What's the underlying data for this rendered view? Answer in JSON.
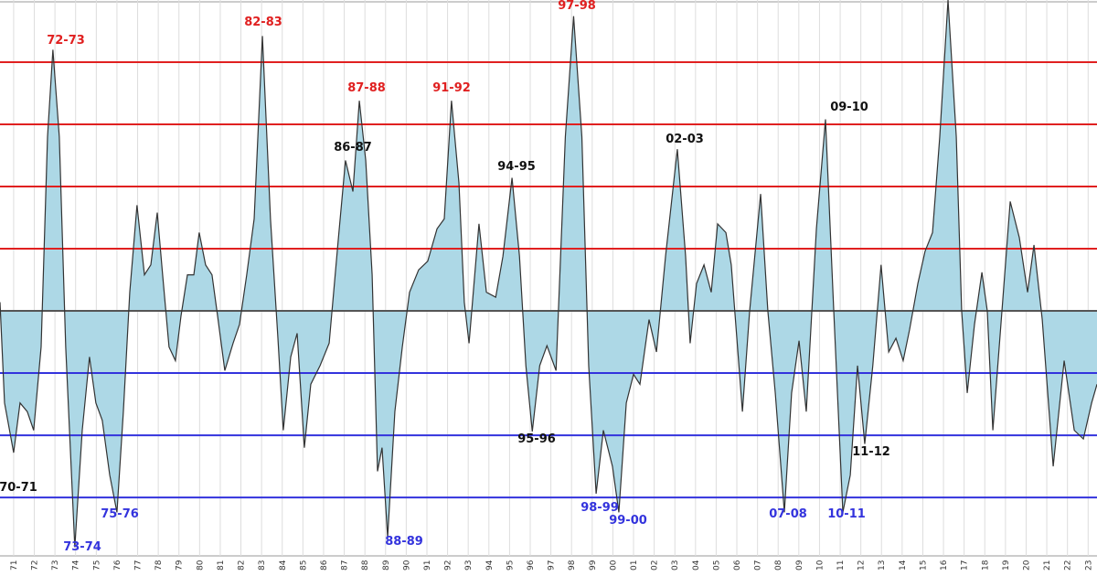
{
  "chart_data": {
    "type": "area",
    "x": [
      1970.34,
      1970.56,
      1971.0,
      1971.31,
      1971.66,
      1971.97,
      1972.33,
      1972.64,
      1972.9,
      1973.21,
      1973.52,
      1973.96,
      1974.32,
      1974.67,
      1974.98,
      1975.29,
      1975.65,
      1976.0,
      1976.31,
      1976.62,
      1976.97,
      1977.33,
      1977.64,
      1977.95,
      1978.21,
      1978.52,
      1978.83,
      1979.1,
      1979.41,
      1979.72,
      1979.98,
      1980.29,
      1980.6,
      1980.87,
      1981.22,
      1981.62,
      1981.93,
      1982.28,
      1982.64,
      1983.04,
      1983.43,
      1983.79,
      1984.05,
      1984.41,
      1984.72,
      1985.07,
      1985.38,
      1985.83,
      1986.27,
      1986.72,
      1987.06,
      1987.42,
      1987.73,
      1988.04,
      1988.35,
      1988.61,
      1988.83,
      1989.1,
      1989.45,
      1989.81,
      1990.16,
      1990.6,
      1991.04,
      1991.49,
      1991.84,
      1992.19,
      1992.55,
      1992.81,
      1993.04,
      1993.52,
      1993.88,
      1994.33,
      1994.68,
      1995.12,
      1995.48,
      1995.79,
      1996.1,
      1996.46,
      1996.81,
      1997.25,
      1997.7,
      1998.1,
      1998.5,
      1998.83,
      1999.19,
      1999.54,
      1999.98,
      2000.29,
      2000.65,
      2001.0,
      2001.31,
      2001.75,
      2002.11,
      2002.55,
      2003.12,
      2003.52,
      2003.74,
      2004.05,
      2004.41,
      2004.76,
      2005.07,
      2005.47,
      2005.73,
      2006.0,
      2006.27,
      2006.62,
      2007.15,
      2007.5,
      2007.86,
      2008.3,
      2008.65,
      2009.01,
      2009.36,
      2009.85,
      2010.29,
      2010.69,
      2011.13,
      2011.49,
      2011.84,
      2012.19,
      2012.58,
      2012.98,
      2013.35,
      2013.7,
      2014.05,
      2014.36,
      2014.76,
      2015.11,
      2015.47,
      2015.82,
      2016.22,
      2016.62,
      2016.88,
      2017.15,
      2017.5,
      2017.86,
      2018.12,
      2018.39,
      2018.83,
      2019.23,
      2019.67,
      2020.07,
      2020.38,
      2020.78,
      2021.31,
      2021.84,
      2022.33,
      2022.77,
      2023.17,
      2023.43
    ],
    "series": [
      {
        "color": "#333333",
        "fill": "#add8e6",
        "values": [
          0.07,
          -0.74,
          -1.14,
          -0.74,
          -0.81,
          -0.96,
          -0.29,
          1.4,
          2.1,
          1.4,
          -0.29,
          -1.9,
          -0.96,
          -0.37,
          -0.74,
          -0.88,
          -1.32,
          -1.62,
          -0.81,
          0.15,
          0.85,
          0.29,
          0.37,
          0.79,
          0.29,
          -0.29,
          -0.4,
          -0.04,
          0.29,
          0.29,
          0.63,
          0.37,
          0.29,
          -0.04,
          -0.48,
          -0.26,
          -0.11,
          0.29,
          0.74,
          2.21,
          0.74,
          -0.22,
          -0.96,
          -0.37,
          -0.18,
          -1.1,
          -0.59,
          -0.44,
          -0.26,
          0.59,
          1.21,
          0.96,
          1.69,
          1.21,
          0.29,
          -1.29,
          -1.1,
          -1.82,
          -0.81,
          -0.29,
          0.15,
          0.33,
          0.4,
          0.66,
          0.74,
          1.69,
          1.03,
          0.07,
          -0.26,
          0.7,
          0.15,
          0.11,
          0.44,
          1.07,
          0.44,
          -0.44,
          -0.97,
          -0.44,
          -0.28,
          -0.48,
          1.4,
          2.37,
          1.4,
          -0.44,
          -1.47,
          -0.96,
          -1.25,
          -1.62,
          -0.74,
          -0.51,
          -0.59,
          -0.07,
          -0.33,
          0.44,
          1.3,
          0.44,
          -0.26,
          0.22,
          0.37,
          0.15,
          0.7,
          0.63,
          0.37,
          -0.22,
          -0.81,
          0.0,
          0.94,
          0.0,
          -0.66,
          -1.62,
          -0.66,
          -0.24,
          -0.81,
          0.66,
          1.54,
          0.0,
          -1.62,
          -1.32,
          -0.44,
          -1.07,
          -0.44,
          0.37,
          -0.33,
          -0.22,
          -0.4,
          -0.15,
          0.22,
          0.48,
          0.63,
          1.4,
          2.5,
          1.4,
          0.0,
          -0.66,
          -0.11,
          0.31,
          0.0,
          -0.96,
          0.0,
          0.88,
          0.59,
          0.15,
          0.53,
          -0.07,
          -1.25,
          -0.4,
          -0.96,
          -1.03,
          -0.74,
          -0.59
        ]
      }
    ],
    "xlim": [
      1970.34,
      2023.43
    ],
    "ylim": [
      -1.97,
      2.5
    ],
    "xticks": [
      {
        "value": 1971,
        "label": "71"
      },
      {
        "value": 1972,
        "label": "72"
      },
      {
        "value": 1973,
        "label": "73"
      },
      {
        "value": 1974,
        "label": "74"
      },
      {
        "value": 1975,
        "label": "75"
      },
      {
        "value": 1976,
        "label": "76"
      },
      {
        "value": 1977,
        "label": "77"
      },
      {
        "value": 1978,
        "label": "78"
      },
      {
        "value": 1979,
        "label": "79"
      },
      {
        "value": 1980,
        "label": "80"
      },
      {
        "value": 1981,
        "label": "81"
      },
      {
        "value": 1982,
        "label": "82"
      },
      {
        "value": 1983,
        "label": "83"
      },
      {
        "value": 1984,
        "label": "84"
      },
      {
        "value": 1985,
        "label": "85"
      },
      {
        "value": 1986,
        "label": "86"
      },
      {
        "value": 1987,
        "label": "87"
      },
      {
        "value": 1988,
        "label": "88"
      },
      {
        "value": 1989,
        "label": "89"
      },
      {
        "value": 1990,
        "label": "90"
      },
      {
        "value": 1991,
        "label": "91"
      },
      {
        "value": 1992,
        "label": "92"
      },
      {
        "value": 1993,
        "label": "93"
      },
      {
        "value": 1994,
        "label": "94"
      },
      {
        "value": 1995,
        "label": "95"
      },
      {
        "value": 1996,
        "label": "96"
      },
      {
        "value": 1997,
        "label": "97"
      },
      {
        "value": 1998,
        "label": "98"
      },
      {
        "value": 1999,
        "label": "99"
      },
      {
        "value": 2000,
        "label": "00"
      },
      {
        "value": 2001,
        "label": "01"
      },
      {
        "value": 2002,
        "label": "02"
      },
      {
        "value": 2003,
        "label": "03"
      },
      {
        "value": 2004,
        "label": "04"
      },
      {
        "value": 2005,
        "label": "05"
      },
      {
        "value": 2006,
        "label": "06"
      },
      {
        "value": 2007,
        "label": "07"
      },
      {
        "value": 2008,
        "label": "08"
      },
      {
        "value": 2009,
        "label": "09"
      },
      {
        "value": 2010,
        "label": "10"
      },
      {
        "value": 2011,
        "label": "11"
      },
      {
        "value": 2012,
        "label": "12"
      },
      {
        "value": 2013,
        "label": "13"
      },
      {
        "value": 2014,
        "label": "14"
      },
      {
        "value": 2015,
        "label": "15"
      },
      {
        "value": 2016,
        "label": "16"
      },
      {
        "value": 2017,
        "label": "17"
      },
      {
        "value": 2018,
        "label": "18"
      },
      {
        "value": 2019,
        "label": "19"
      },
      {
        "value": 2020,
        "label": "20"
      },
      {
        "value": 2021,
        "label": "21"
      },
      {
        "value": 2022,
        "label": "22"
      },
      {
        "value": 2023,
        "label": "23"
      }
    ],
    "grid": true,
    "reference_lines": [
      {
        "value": 0,
        "color": "#555555"
      },
      {
        "value": 0.5,
        "color": "#e02020"
      },
      {
        "value": 1.0,
        "color": "#e02020"
      },
      {
        "value": 1.5,
        "color": "#e02020"
      },
      {
        "value": 2.0,
        "color": "#e02020"
      },
      {
        "value": -0.5,
        "color": "#3333dd"
      },
      {
        "value": -1.0,
        "color": "#3333dd"
      },
      {
        "value": -1.5,
        "color": "#3333dd"
      }
    ],
    "annotations": [
      {
        "text": "72-73",
        "color": "#e02020"
      },
      {
        "text": "82-83",
        "color": "#e02020"
      },
      {
        "text": "87-88",
        "color": "#e02020"
      },
      {
        "text": "86-87",
        "color": "#111111"
      },
      {
        "text": "91-92",
        "color": "#e02020"
      },
      {
        "text": "94-95",
        "color": "#111111"
      },
      {
        "text": "97-98",
        "color": "#e02020"
      },
      {
        "text": "02-03",
        "color": "#111111"
      },
      {
        "text": "09-10",
        "color": "#111111"
      },
      {
        "text": "70-71",
        "color": "#111111"
      },
      {
        "text": "73-74",
        "color": "#3333dd"
      },
      {
        "text": "75-76",
        "color": "#3333dd"
      },
      {
        "text": "88-89",
        "color": "#3333dd"
      },
      {
        "text": "95-96",
        "color": "#111111"
      },
      {
        "text": "98-99",
        "color": "#3333dd"
      },
      {
        "text": "99-00",
        "color": "#3333dd"
      },
      {
        "text": "07-08",
        "color": "#3333dd"
      },
      {
        "text": "10-11",
        "color": "#3333dd"
      },
      {
        "text": "11-12",
        "color": "#111111"
      }
    ]
  }
}
